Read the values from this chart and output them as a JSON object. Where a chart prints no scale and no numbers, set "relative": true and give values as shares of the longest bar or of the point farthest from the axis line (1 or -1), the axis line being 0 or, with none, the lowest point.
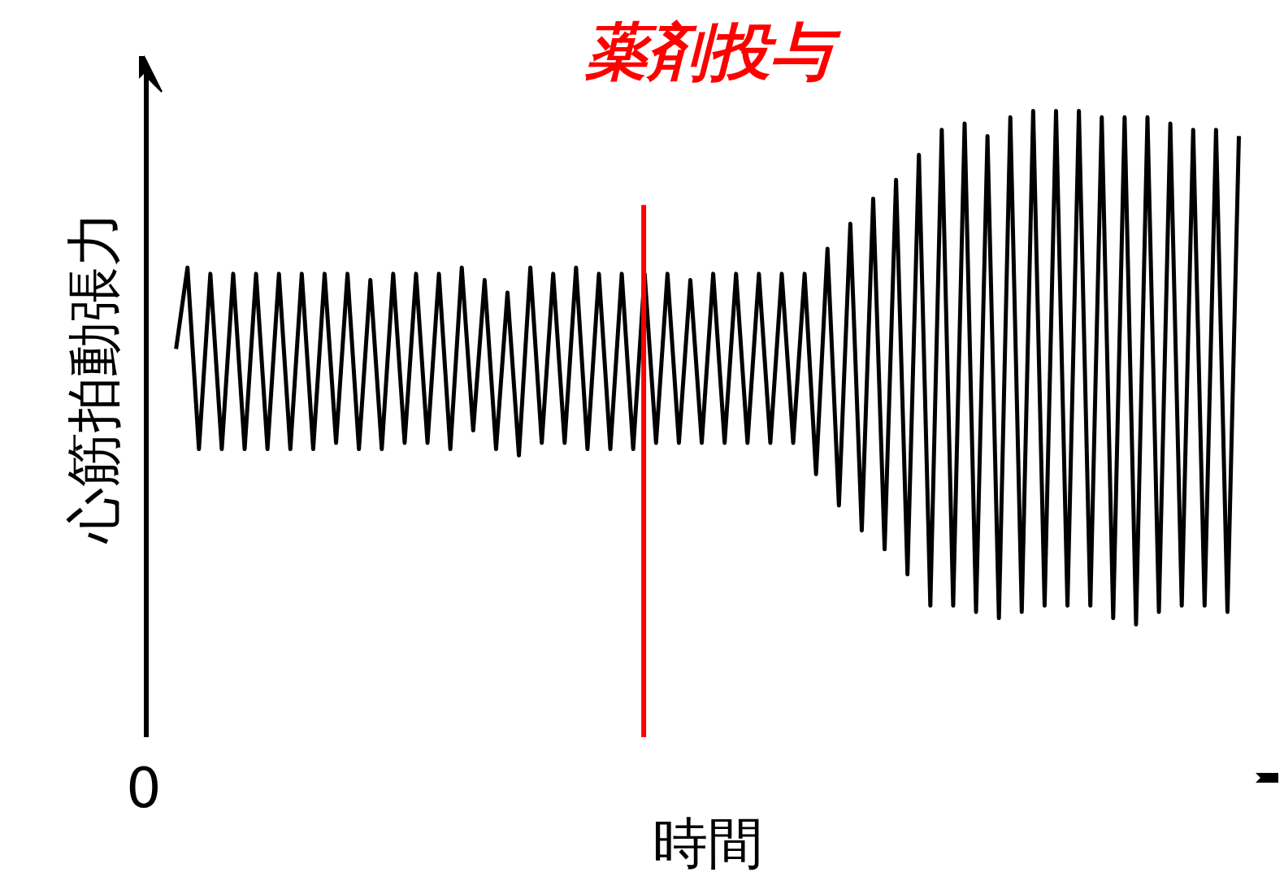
{
  "chart_data": {
    "type": "line",
    "relative": true,
    "xlabel": "時間",
    "ylabel": "心筋拍動張力",
    "annotations": [
      "0",
      "薬剤投与"
    ],
    "categories": [
      null,
      null,
      null,
      null,
      null,
      null,
      null,
      null,
      null,
      null,
      null,
      null,
      null,
      null,
      null,
      null,
      null,
      null,
      null,
      null,
      null,
      null,
      null,
      null,
      null,
      null,
      null,
      null,
      null,
      null,
      null,
      null,
      null,
      null,
      null,
      null,
      null,
      null,
      null,
      null,
      null,
      null,
      null,
      null,
      null,
      null,
      null,
      null,
      null,
      null,
      null,
      null,
      null,
      null,
      null,
      null,
      null,
      null,
      null,
      null,
      null,
      null,
      null,
      null,
      null,
      null,
      null,
      null,
      null,
      null,
      null,
      null,
      null,
      null,
      null,
      null,
      null,
      null,
      null,
      null,
      null,
      null,
      null,
      null,
      null,
      null,
      null,
      null,
      null,
      null,
      null,
      null,
      null,
      null
    ],
    "series": [
      {
        "color": "#000000",
        "values": [
          0.62,
          0.75,
          0.46,
          0.74,
          0.46,
          0.74,
          0.46,
          0.74,
          0.46,
          0.74,
          0.46,
          0.74,
          0.46,
          0.74,
          0.47,
          0.74,
          0.46,
          0.73,
          0.46,
          0.74,
          0.47,
          0.74,
          0.47,
          0.74,
          0.46,
          0.75,
          0.49,
          0.73,
          0.46,
          0.71,
          0.45,
          0.75,
          0.47,
          0.74,
          0.47,
          0.75,
          0.46,
          0.74,
          0.46,
          0.74,
          0.46,
          0.74,
          0.47,
          0.74,
          0.47,
          0.73,
          0.47,
          0.74,
          0.47,
          0.74,
          0.47,
          0.74,
          0.47,
          0.74,
          0.47,
          0.74,
          0.42,
          0.78,
          0.37,
          0.82,
          0.33,
          0.86,
          0.3,
          0.89,
          0.26,
          0.93,
          0.21,
          0.97,
          0.21,
          0.98,
          0.2,
          0.96,
          0.19,
          0.99,
          0.2,
          1.0,
          0.21,
          1.0,
          0.21,
          1.0,
          0.21,
          0.99,
          0.19,
          0.99,
          0.18,
          0.99,
          0.2,
          0.98,
          0.21,
          0.97,
          0.21,
          0.97,
          0.2,
          0.96
        ]
      }
    ]
  }
}
